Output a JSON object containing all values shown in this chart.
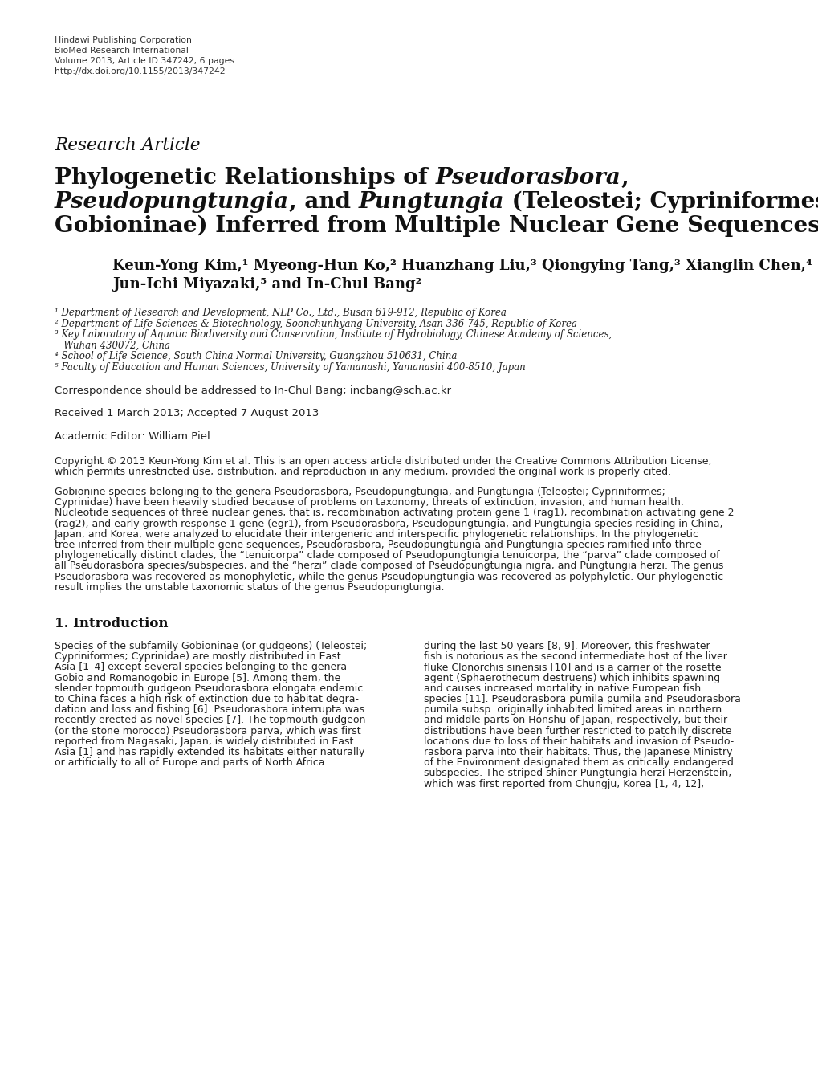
{
  "background_color": "#ffffff",
  "header_lines": [
    "Hindawi Publishing Corporation",
    "BioMed Research International",
    "Volume 2013, Article ID 347242, 6 pages",
    "http://dx.doi.org/10.1155/2013/347242"
  ],
  "research_article_label": "Research Article",
  "title_line1_plain": "Phylogenetic Relationships of ",
  "title_line1_italic": "Pseudorasbora",
  "title_line1_end": ",",
  "title_line2_italic1": "Pseudopungtungia",
  "title_line2_mid": ", and ",
  "title_line2_italic2": "Pungtungia",
  "title_line2_end": " (Teleostei; Cypriniformes;",
  "title_line3": "Gobioninae) Inferred from Multiple Nuclear Gene Sequences",
  "authors_line1": "Keun-Yong Kim,¹ Myeong-Hun Ko,² Huanzhang Liu,³ Qiongying Tang,³ Xianglin Chen,⁴",
  "authors_line2": "Jun-Ichi Miyazaki,⁵ and In-Chul Bang²",
  "affiliations": [
    "¹ Department of Research and Development, NLP Co., Ltd., Busan 619-912, Republic of Korea",
    "² Department of Life Sciences & Biotechnology, Soonchunhyang University, Asan 336-745, Republic of Korea",
    "³ Key Laboratory of Aquatic Biodiversity and Conservation, Institute of Hydrobiology, Chinese Academy of Sciences,",
    "   Wuhan 430072, China",
    "⁴ School of Life Science, South China Normal University, Guangzhou 510631, China",
    "⁵ Faculty of Education and Human Sciences, University of Yamanashi, Yamanashi 400-8510, Japan"
  ],
  "correspondence": "Correspondence should be addressed to In-Chul Bang; incbang@sch.ac.kr",
  "received": "Received 1 March 2013; Accepted 7 August 2013",
  "editor": "Academic Editor: William Piel",
  "copyright_line1": "Copyright © 2013 Keun-Yong Kim et al. This is an open access article distributed under the Creative Commons Attribution License,",
  "copyright_line2": "which permits unrestricted use, distribution, and reproduction in any medium, provided the original work is properly cited.",
  "abstract_lines": [
    "Gobionine species belonging to the genera Pseudorasbora, Pseudopungtungia, and Pungtungia (Teleostei; Cypriniformes;",
    "Cyprinidae) have been heavily studied because of problems on taxonomy, threats of extinction, invasion, and human health.",
    "Nucleotide sequences of three nuclear genes, that is, recombination activating protein gene 1 (rag1), recombination activating gene 2",
    "(rag2), and early growth response 1 gene (egr1), from Pseudorasbora, Pseudopungtungia, and Pungtungia species residing in China,",
    "Japan, and Korea, were analyzed to elucidate their intergeneric and interspecific phylogenetic relationships. In the phylogenetic",
    "tree inferred from their multiple gene sequences, Pseudorasbora, Pseudopungtungia and Pungtungia species ramified into three",
    "phylogenetically distinct clades; the “tenuicorpa” clade composed of Pseudopungtungia tenuicorpa, the “parva” clade composed of",
    "all Pseudorasbora species/subspecies, and the “herzi” clade composed of Pseudopungtungia nigra, and Pungtungia herzi. The genus",
    "Pseudorasbora was recovered as monophyletic, while the genus Pseudopungtungia was recovered as polyphyletic. Our phylogenetic",
    "result implies the unstable taxonomic status of the genus Pseudopungtungia."
  ],
  "intro_heading": "1. Introduction",
  "intro_col1_lines": [
    "Species of the subfamily Gobioninae (or gudgeons) (Teleostei;",
    "Cypriniformes; Cyprinidae) are mostly distributed in East",
    "Asia [1–4] except several species belonging to the genera",
    "Gobio and Romanogobio in Europe [5]. Among them, the",
    "slender topmouth gudgeon Pseudorasbora elongata endemic",
    "to China faces a high risk of extinction due to habitat degra-",
    "dation and loss and fishing [6]. Pseudorasbora interrupta was",
    "recently erected as novel species [7]. The topmouth gudgeon",
    "(or the stone morocco) Pseudorasbora parva, which was first",
    "reported from Nagasaki, Japan, is widely distributed in East",
    "Asia [1] and has rapidly extended its habitats either naturally",
    "or artificially to all of Europe and parts of North Africa"
  ],
  "intro_col2_lines": [
    "during the last 50 years [8, 9]. Moreover, this freshwater",
    "fish is notorious as the second intermediate host of the liver",
    "fluke Clonorchis sinensis [10] and is a carrier of the rosette",
    "agent (Sphaerothecum destruens) which inhibits spawning",
    "and causes increased mortality in native European fish",
    "species [11]. Pseudorasbora pumila pumila and Pseudorasbora",
    "pumila subsp. originally inhabited limited areas in northern",
    "and middle parts on Honshu of Japan, respectively, but their",
    "distributions have been further restricted to patchily discrete",
    "locations due to loss of their habitats and invasion of Pseudo-",
    "rasbora parva into their habitats. Thus, the Japanese Ministry",
    "of the Environment designated them as critically endangered",
    "subspecies. The striped shiner Pungtungia herzi Herzenstein,",
    "which was first reported from Chungju, Korea [1, 4, 12],"
  ]
}
